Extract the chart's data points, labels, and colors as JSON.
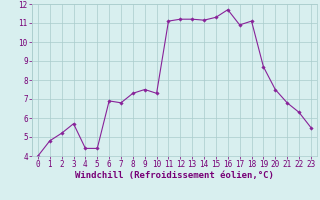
{
  "x": [
    0,
    1,
    2,
    3,
    4,
    5,
    6,
    7,
    8,
    9,
    10,
    11,
    12,
    13,
    14,
    15,
    16,
    17,
    18,
    19,
    20,
    21,
    22,
    23
  ],
  "y": [
    4.0,
    4.8,
    5.2,
    5.7,
    4.4,
    4.4,
    6.9,
    6.8,
    7.3,
    7.5,
    7.3,
    11.1,
    11.2,
    11.2,
    11.15,
    11.3,
    11.7,
    10.9,
    11.1,
    8.7,
    7.5,
    6.8,
    6.3,
    5.5
  ],
  "xlabel": "Windchill (Refroidissement éolien,°C)",
  "ylim": [
    4,
    12
  ],
  "xlim": [
    -0.5,
    23.5
  ],
  "yticks": [
    4,
    5,
    6,
    7,
    8,
    9,
    10,
    11,
    12
  ],
  "xticks": [
    0,
    1,
    2,
    3,
    4,
    5,
    6,
    7,
    8,
    9,
    10,
    11,
    12,
    13,
    14,
    15,
    16,
    17,
    18,
    19,
    20,
    21,
    22,
    23
  ],
  "line_color": "#882299",
  "marker_color": "#882299",
  "bg_color": "#d8efef",
  "grid_color": "#aacccc",
  "font_color": "#770077",
  "tick_fontsize": 5.5,
  "xlabel_fontsize": 6.5
}
